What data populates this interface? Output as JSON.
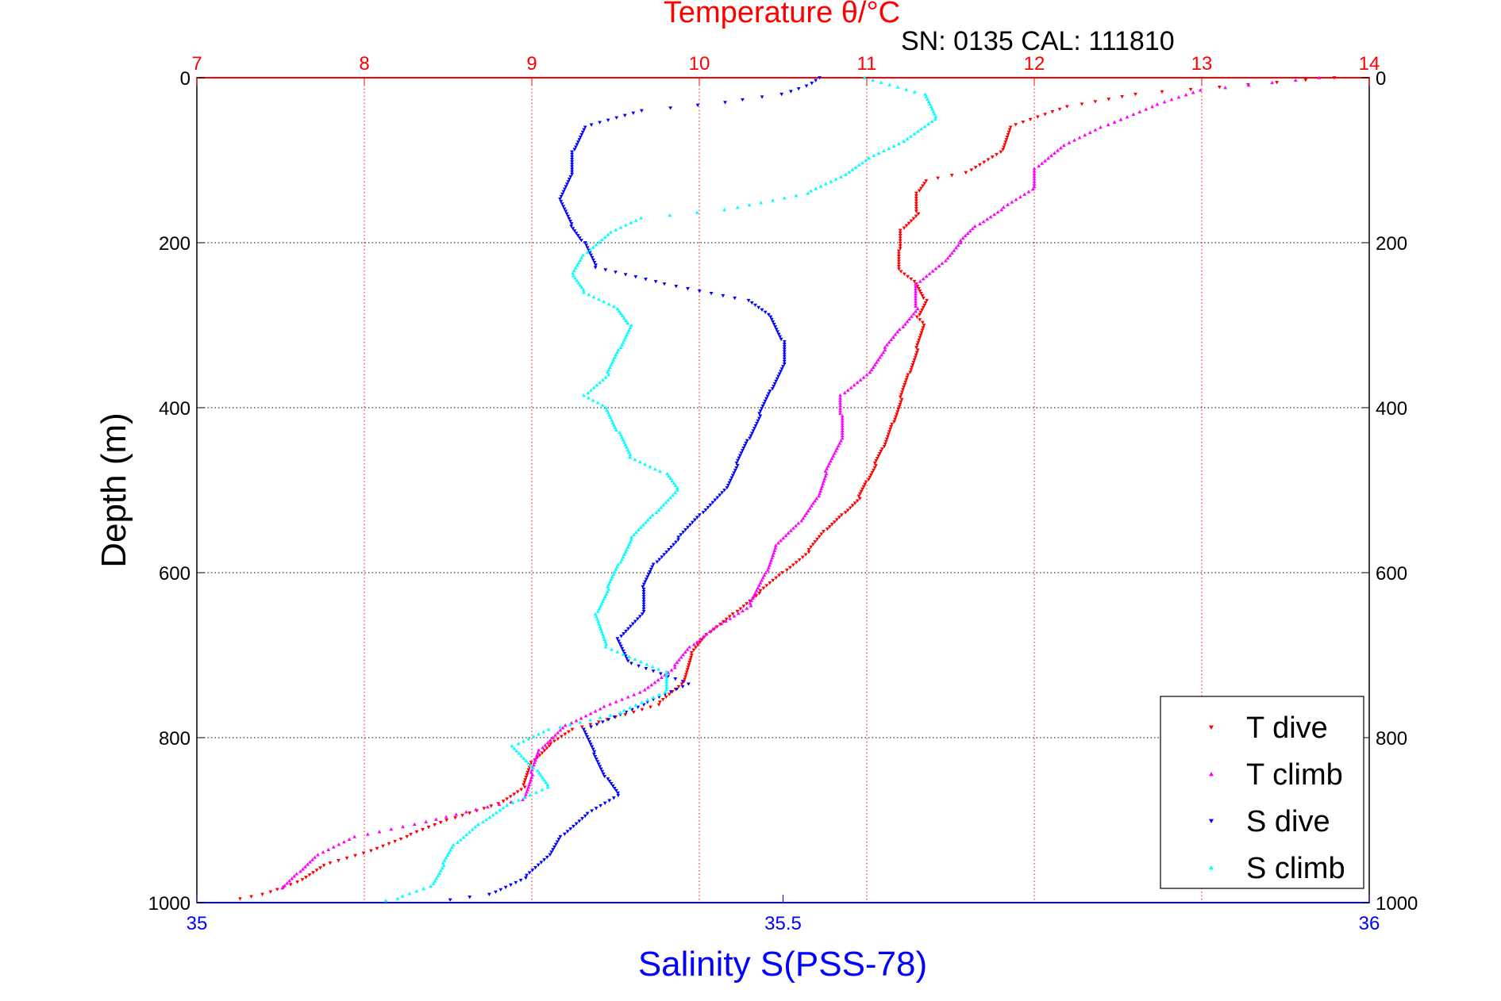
{
  "chart_data": {
    "type": "scatter",
    "title": "Temperature θ/°C",
    "subtitle": "SN: 0135  CAL: 111810",
    "xlabel": "Salinity S(PSS-78)",
    "ylabel": "Depth (m)",
    "x_top_axis": {
      "label": "Temperature θ/°C",
      "range": [
        7,
        14
      ],
      "ticks": [
        "7",
        "8",
        "9",
        "10",
        "11",
        "12",
        "13",
        "14"
      ],
      "color": "#ff0000"
    },
    "x_bottom_axis": {
      "label": "Salinity S(PSS-78)",
      "range": [
        35,
        36
      ],
      "ticks": [
        "35",
        "35.5",
        "36"
      ],
      "color": "#0000ff"
    },
    "y_axis": {
      "range": [
        0,
        1000
      ],
      "inverted": true,
      "ticks": [
        "0",
        "200",
        "400",
        "600",
        "800",
        "1000"
      ]
    },
    "grid": true,
    "legend_position": "bottom-right",
    "series": [
      {
        "name": "T dive",
        "axis": "temperature",
        "color": "#ff0000",
        "marker": "triangle-down",
        "points": [
          [
            13.8,
            0
          ],
          [
            12.6,
            20
          ],
          [
            12.2,
            35
          ],
          [
            11.85,
            60
          ],
          [
            11.8,
            90
          ],
          [
            11.6,
            115
          ],
          [
            11.35,
            125
          ],
          [
            11.3,
            140
          ],
          [
            11.3,
            165
          ],
          [
            11.2,
            185
          ],
          [
            11.2,
            210
          ],
          [
            11.2,
            235
          ],
          [
            11.3,
            250
          ],
          [
            11.35,
            270
          ],
          [
            11.3,
            290
          ],
          [
            11.35,
            300
          ],
          [
            11.3,
            330
          ],
          [
            11.25,
            360
          ],
          [
            11.2,
            390
          ],
          [
            11.15,
            420
          ],
          [
            11.1,
            450
          ],
          [
            11.05,
            470
          ],
          [
            11.0,
            490
          ],
          [
            10.95,
            510
          ],
          [
            10.85,
            530
          ],
          [
            10.75,
            550
          ],
          [
            10.65,
            575
          ],
          [
            10.5,
            600
          ],
          [
            10.35,
            625
          ],
          [
            10.2,
            650
          ],
          [
            10.05,
            675
          ],
          [
            9.95,
            700
          ],
          [
            9.9,
            735
          ],
          [
            9.75,
            760
          ],
          [
            9.5,
            775
          ],
          [
            9.25,
            790
          ],
          [
            9.1,
            810
          ],
          [
            9.0,
            830
          ],
          [
            8.95,
            860
          ],
          [
            8.8,
            880
          ],
          [
            8.5,
            900
          ],
          [
            8.25,
            920
          ],
          [
            8.0,
            940
          ],
          [
            7.75,
            955
          ],
          [
            7.6,
            975
          ],
          [
            7.4,
            990
          ],
          [
            7.2,
            998
          ]
        ]
      },
      {
        "name": "T climb",
        "axis": "temperature",
        "color": "#ff00ff",
        "marker": "triangle-up",
        "points": [
          [
            13.7,
            0
          ],
          [
            13.0,
            15
          ],
          [
            12.7,
            35
          ],
          [
            12.4,
            60
          ],
          [
            12.15,
            85
          ],
          [
            12.0,
            110
          ],
          [
            12.0,
            135
          ],
          [
            11.8,
            160
          ],
          [
            11.65,
            180
          ],
          [
            11.55,
            200
          ],
          [
            11.45,
            225
          ],
          [
            11.3,
            250
          ],
          [
            11.3,
            280
          ],
          [
            11.2,
            305
          ],
          [
            11.1,
            330
          ],
          [
            11.0,
            360
          ],
          [
            10.85,
            385
          ],
          [
            10.85,
            410
          ],
          [
            10.85,
            440
          ],
          [
            10.75,
            480
          ],
          [
            10.7,
            510
          ],
          [
            10.6,
            540
          ],
          [
            10.45,
            570
          ],
          [
            10.4,
            600
          ],
          [
            10.3,
            640
          ],
          [
            10.1,
            665
          ],
          [
            9.95,
            690
          ],
          [
            9.85,
            715
          ],
          [
            9.65,
            745
          ],
          [
            9.4,
            765
          ],
          [
            9.2,
            785
          ],
          [
            9.05,
            815
          ],
          [
            9.0,
            845
          ],
          [
            8.95,
            875
          ],
          [
            8.6,
            890
          ],
          [
            8.3,
            905
          ],
          [
            7.95,
            920
          ],
          [
            7.7,
            945
          ],
          [
            7.6,
            965
          ],
          [
            7.5,
            985
          ]
        ]
      },
      {
        "name": "S dive",
        "axis": "salinity",
        "color": "#0000ff",
        "marker": "triangle-down",
        "points": [
          [
            35.53,
            0
          ],
          [
            35.52,
            10
          ],
          [
            35.5,
            20
          ],
          [
            35.45,
            30
          ],
          [
            35.38,
            40
          ],
          [
            35.33,
            60
          ],
          [
            35.32,
            90
          ],
          [
            35.32,
            120
          ],
          [
            35.31,
            150
          ],
          [
            35.32,
            180
          ],
          [
            35.33,
            200
          ],
          [
            35.34,
            230
          ],
          [
            35.4,
            250
          ],
          [
            35.47,
            270
          ],
          [
            35.49,
            290
          ],
          [
            35.5,
            320
          ],
          [
            35.5,
            350
          ],
          [
            35.49,
            380
          ],
          [
            35.48,
            410
          ],
          [
            35.47,
            440
          ],
          [
            35.46,
            470
          ],
          [
            35.45,
            500
          ],
          [
            35.43,
            530
          ],
          [
            35.41,
            560
          ],
          [
            35.39,
            590
          ],
          [
            35.38,
            620
          ],
          [
            35.38,
            650
          ],
          [
            35.36,
            680
          ],
          [
            35.37,
            710
          ],
          [
            35.42,
            735
          ],
          [
            35.38,
            760
          ],
          [
            35.33,
            790
          ],
          [
            35.34,
            820
          ],
          [
            35.35,
            850
          ],
          [
            35.36,
            870
          ],
          [
            35.33,
            895
          ],
          [
            35.31,
            920
          ],
          [
            35.3,
            945
          ],
          [
            35.28,
            970
          ],
          [
            35.25,
            990
          ],
          [
            35.2,
            1000
          ]
        ]
      },
      {
        "name": "S climb",
        "axis": "salinity",
        "color": "#00ffff",
        "marker": "triangle-up",
        "points": [
          [
            35.57,
            0
          ],
          [
            35.62,
            20
          ],
          [
            35.63,
            50
          ],
          [
            35.6,
            80
          ],
          [
            35.57,
            100
          ],
          [
            35.55,
            120
          ],
          [
            35.52,
            140
          ],
          [
            35.45,
            160
          ],
          [
            35.38,
            170
          ],
          [
            35.35,
            190
          ],
          [
            35.33,
            215
          ],
          [
            35.32,
            240
          ],
          [
            35.33,
            260
          ],
          [
            35.36,
            280
          ],
          [
            35.37,
            300
          ],
          [
            35.36,
            330
          ],
          [
            35.35,
            360
          ],
          [
            35.33,
            385
          ],
          [
            35.35,
            400
          ],
          [
            35.36,
            430
          ],
          [
            35.37,
            460
          ],
          [
            35.4,
            480
          ],
          [
            35.41,
            500
          ],
          [
            35.39,
            530
          ],
          [
            35.37,
            560
          ],
          [
            35.36,
            590
          ],
          [
            35.35,
            620
          ],
          [
            35.34,
            650
          ],
          [
            35.35,
            690
          ],
          [
            35.4,
            720
          ],
          [
            35.4,
            745
          ],
          [
            35.36,
            770
          ],
          [
            35.3,
            790
          ],
          [
            35.27,
            810
          ],
          [
            35.29,
            840
          ],
          [
            35.3,
            860
          ],
          [
            35.26,
            885
          ],
          [
            35.24,
            905
          ],
          [
            35.22,
            930
          ],
          [
            35.21,
            955
          ],
          [
            35.2,
            980
          ],
          [
            35.17,
            995
          ],
          [
            35.15,
            1000
          ]
        ]
      }
    ]
  }
}
